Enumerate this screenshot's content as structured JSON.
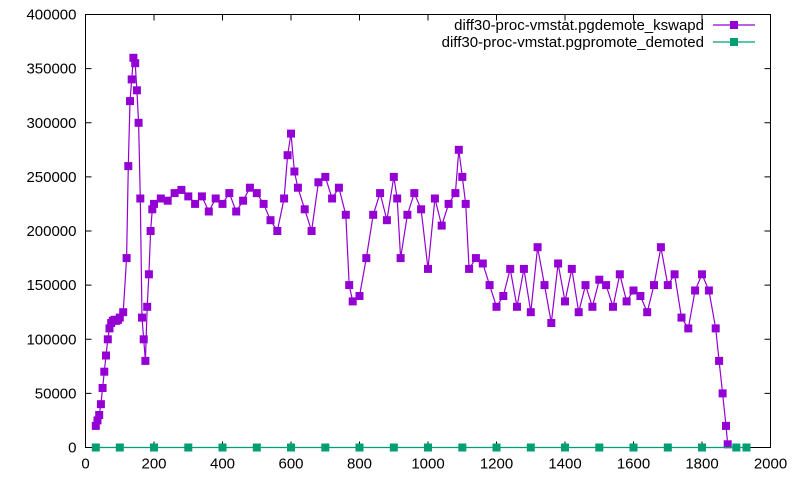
{
  "chart_data": {
    "type": "line",
    "title": "",
    "xlabel": "",
    "ylabel": "",
    "xlim": [
      0,
      2000
    ],
    "ylim": [
      0,
      400000
    ],
    "x_ticks": [
      "0",
      "200",
      "400",
      "600",
      "800",
      "1000",
      "1200",
      "1400",
      "1600",
      "1800",
      "2000"
    ],
    "y_ticks": [
      "0",
      "50000",
      "100000",
      "150000",
      "200000",
      "250000",
      "300000",
      "350000",
      "400000"
    ],
    "grid": false,
    "legend_position": "top-right",
    "series": [
      {
        "name": "diff30-proc-vmstat.pgdemote_kswapd",
        "color": "#9400d3",
        "marker": "square",
        "x": [
          30,
          35,
          40,
          45,
          50,
          55,
          60,
          65,
          70,
          75,
          80,
          85,
          90,
          95,
          100,
          110,
          120,
          125,
          130,
          135,
          140,
          145,
          150,
          155,
          160,
          165,
          170,
          175,
          180,
          185,
          190,
          195,
          200,
          220,
          240,
          260,
          280,
          300,
          320,
          340,
          360,
          380,
          400,
          420,
          440,
          460,
          480,
          500,
          520,
          540,
          560,
          580,
          590,
          600,
          610,
          620,
          640,
          660,
          680,
          700,
          720,
          740,
          760,
          770,
          780,
          800,
          820,
          840,
          860,
          880,
          900,
          910,
          920,
          940,
          960,
          980,
          1000,
          1020,
          1040,
          1060,
          1080,
          1090,
          1100,
          1110,
          1120,
          1140,
          1160,
          1180,
          1200,
          1220,
          1240,
          1260,
          1280,
          1300,
          1320,
          1340,
          1360,
          1380,
          1400,
          1420,
          1440,
          1460,
          1480,
          1500,
          1520,
          1540,
          1560,
          1580,
          1600,
          1620,
          1640,
          1660,
          1680,
          1700,
          1720,
          1740,
          1760,
          1780,
          1800,
          1820,
          1840,
          1850,
          1860,
          1870,
          1875
        ],
        "y": [
          20000,
          25000,
          30000,
          40000,
          55000,
          70000,
          85000,
          100000,
          110000,
          115000,
          117000,
          118000,
          117000,
          118000,
          120000,
          125000,
          175000,
          260000,
          320000,
          340000,
          360000,
          355000,
          330000,
          300000,
          230000,
          120000,
          100000,
          80000,
          130000,
          160000,
          200000,
          220000,
          225000,
          230000,
          228000,
          235000,
          238000,
          232000,
          225000,
          232000,
          218000,
          230000,
          225000,
          235000,
          218000,
          228000,
          240000,
          235000,
          225000,
          210000,
          200000,
          230000,
          270000,
          290000,
          255000,
          240000,
          220000,
          200000,
          245000,
          250000,
          230000,
          240000,
          215000,
          150000,
          135000,
          140000,
          175000,
          215000,
          235000,
          210000,
          250000,
          230000,
          175000,
          215000,
          235000,
          220000,
          165000,
          230000,
          205000,
          225000,
          235000,
          275000,
          250000,
          225000,
          165000,
          175000,
          170000,
          150000,
          130000,
          140000,
          165000,
          130000,
          165000,
          125000,
          185000,
          150000,
          115000,
          170000,
          135000,
          165000,
          125000,
          150000,
          130000,
          155000,
          150000,
          130000,
          160000,
          135000,
          145000,
          140000,
          125000,
          150000,
          185000,
          150000,
          160000,
          120000,
          110000,
          145000,
          160000,
          145000,
          110000,
          80000,
          50000,
          20000,
          3000
        ]
      },
      {
        "name": "diff30-proc-vmstat.pgpromote_demoted",
        "color": "#009e73",
        "marker": "square",
        "x": [
          30,
          100,
          200,
          300,
          400,
          500,
          600,
          700,
          800,
          900,
          1000,
          1100,
          1200,
          1300,
          1400,
          1500,
          1600,
          1700,
          1800,
          1900,
          1930
        ],
        "y": [
          0,
          0,
          0,
          0,
          0,
          0,
          0,
          0,
          0,
          0,
          0,
          0,
          0,
          0,
          0,
          0,
          0,
          0,
          0,
          0,
          0
        ]
      }
    ]
  }
}
